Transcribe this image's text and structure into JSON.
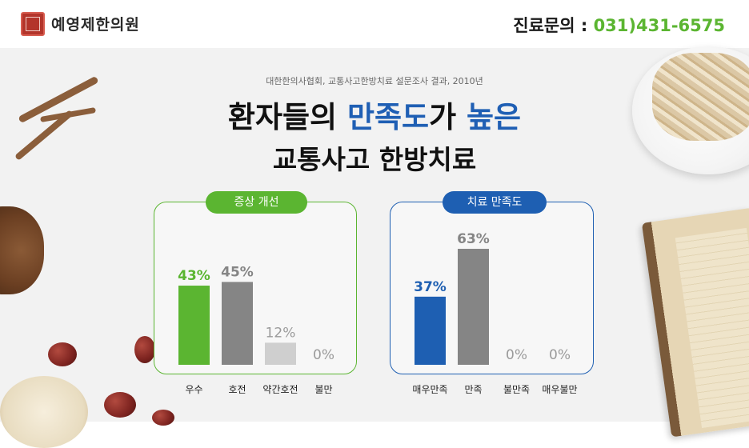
{
  "header": {
    "logo_text": "예영제한의원",
    "contact_label": "진료문의 : ",
    "contact_phone": "031)431-6575"
  },
  "survey_source": "대한한의사협회, 교통사고한방치료 설문조사 결과, 2010년",
  "title": {
    "line1_a": "환자들의 ",
    "line1_hl1": "만족도",
    "line1_b": "가 ",
    "line1_hl2": "높은",
    "line2": "교통사고 한방치료"
  },
  "colors": {
    "green": "#5bb531",
    "blue": "#1e5fb2",
    "gray": "#858585",
    "light_gray": "#cfcfcf"
  },
  "chart_data": [
    {
      "type": "bar",
      "title": "증상 개선",
      "categories": [
        "우수",
        "호전",
        "약간호전",
        "불만"
      ],
      "values": [
        43,
        45,
        12,
        0
      ],
      "value_labels": [
        "43%",
        "45%",
        "12%",
        "0%"
      ],
      "bar_colors": [
        "#5bb531",
        "#858585",
        "#cfcfcf",
        "#cfcfcf"
      ],
      "label_colors": [
        "#5bb531",
        "#858585",
        "#9a9a9a",
        "#9a9a9a"
      ],
      "ylim": [
        0,
        63
      ]
    },
    {
      "type": "bar",
      "title": "치료 만족도",
      "categories": [
        "매우만족",
        "만족",
        "불만족",
        "매우불만"
      ],
      "values": [
        37,
        63,
        0,
        0
      ],
      "value_labels": [
        "37%",
        "63%",
        "0%",
        "0%"
      ],
      "bar_colors": [
        "#1e5fb2",
        "#858585",
        "#cfcfcf",
        "#cfcfcf"
      ],
      "label_colors": [
        "#1e5fb2",
        "#858585",
        "#9a9a9a",
        "#9a9a9a"
      ],
      "ylim": [
        0,
        63
      ]
    }
  ]
}
